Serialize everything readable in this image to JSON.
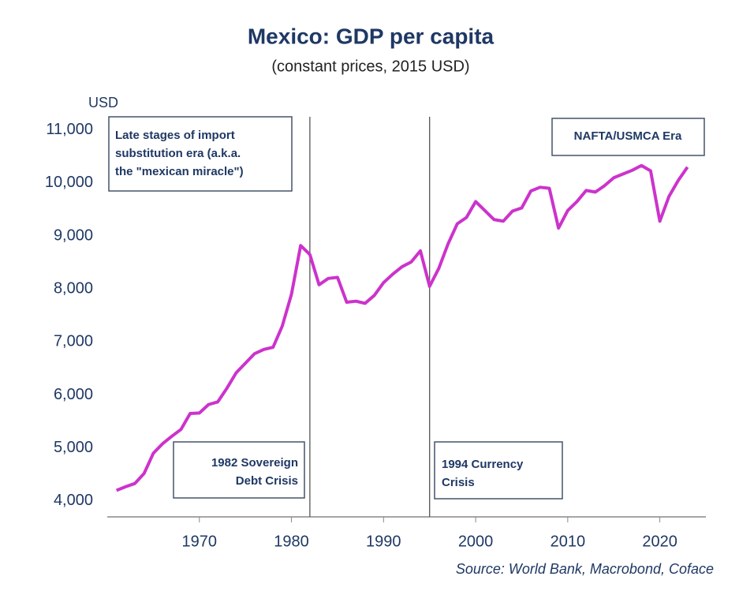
{
  "chart_data": {
    "type": "line",
    "title": "Mexico: GDP per capita",
    "subtitle": "(constant prices, 2015 USD)",
    "y_axis_label": "USD",
    "source": "Source: World Bank, Macrobond, Coface",
    "x": [
      1961,
      1962,
      1963,
      1964,
      1965,
      1966,
      1967,
      1968,
      1969,
      1970,
      1971,
      1972,
      1973,
      1974,
      1975,
      1976,
      1977,
      1978,
      1979,
      1980,
      1981,
      1982,
      1983,
      1984,
      1985,
      1986,
      1987,
      1988,
      1989,
      1990,
      1991,
      1992,
      1993,
      1994,
      1995,
      1996,
      1997,
      1998,
      1999,
      2000,
      2001,
      2002,
      2003,
      2004,
      2005,
      2006,
      2007,
      2008,
      2009,
      2010,
      2011,
      2012,
      2013,
      2014,
      2015,
      2016,
      2017,
      2018,
      2019,
      2020,
      2021,
      2022,
      2023
    ],
    "series": [
      {
        "name": "GDP per capita",
        "color": "#cc33cc",
        "values": [
          4200,
          4270,
          4330,
          4520,
          4900,
          5080,
          5220,
          5350,
          5650,
          5660,
          5820,
          5870,
          6130,
          6420,
          6600,
          6780,
          6860,
          6900,
          7300,
          7900,
          8820,
          8650,
          8080,
          8200,
          8220,
          7750,
          7770,
          7730,
          7880,
          8120,
          8280,
          8420,
          8510,
          8720,
          8050,
          8390,
          8850,
          9230,
          9350,
          9650,
          9480,
          9310,
          9280,
          9470,
          9530,
          9850,
          9920,
          9900,
          9150,
          9480,
          9650,
          9860,
          9830,
          9950,
          10100,
          10170,
          10240,
          10330,
          10230,
          9280,
          9750,
          10050,
          10300
        ]
      }
    ],
    "xlim": [
      1960,
      2025
    ],
    "xticks": [
      1970,
      1980,
      1990,
      2000,
      2010,
      2020
    ],
    "ylim": [
      3700,
      11250
    ],
    "yticks": [
      {
        "value": 4000,
        "label": "4,000"
      },
      {
        "value": 5000,
        "label": "5,000"
      },
      {
        "value": 6000,
        "label": "6,000"
      },
      {
        "value": 7000,
        "label": "7,000"
      },
      {
        "value": 8000,
        "label": "8,000"
      },
      {
        "value": 9000,
        "label": "9,000"
      },
      {
        "value": 10000,
        "label": "10,000"
      },
      {
        "value": 11000,
        "label": "11,000"
      }
    ],
    "event_lines": [
      1982,
      1995
    ],
    "annotations": [
      {
        "lines": [
          "Late stages of import",
          "substitution era (a.k.a.",
          "the \"mexican miracle\")"
        ]
      },
      {
        "lines": [
          "NAFTA/USMCA Era"
        ]
      },
      {
        "lines": [
          "1982 Sovereign",
          "Debt Crisis"
        ]
      },
      {
        "lines": [
          "1994 Currency",
          "Crisis"
        ]
      }
    ]
  }
}
